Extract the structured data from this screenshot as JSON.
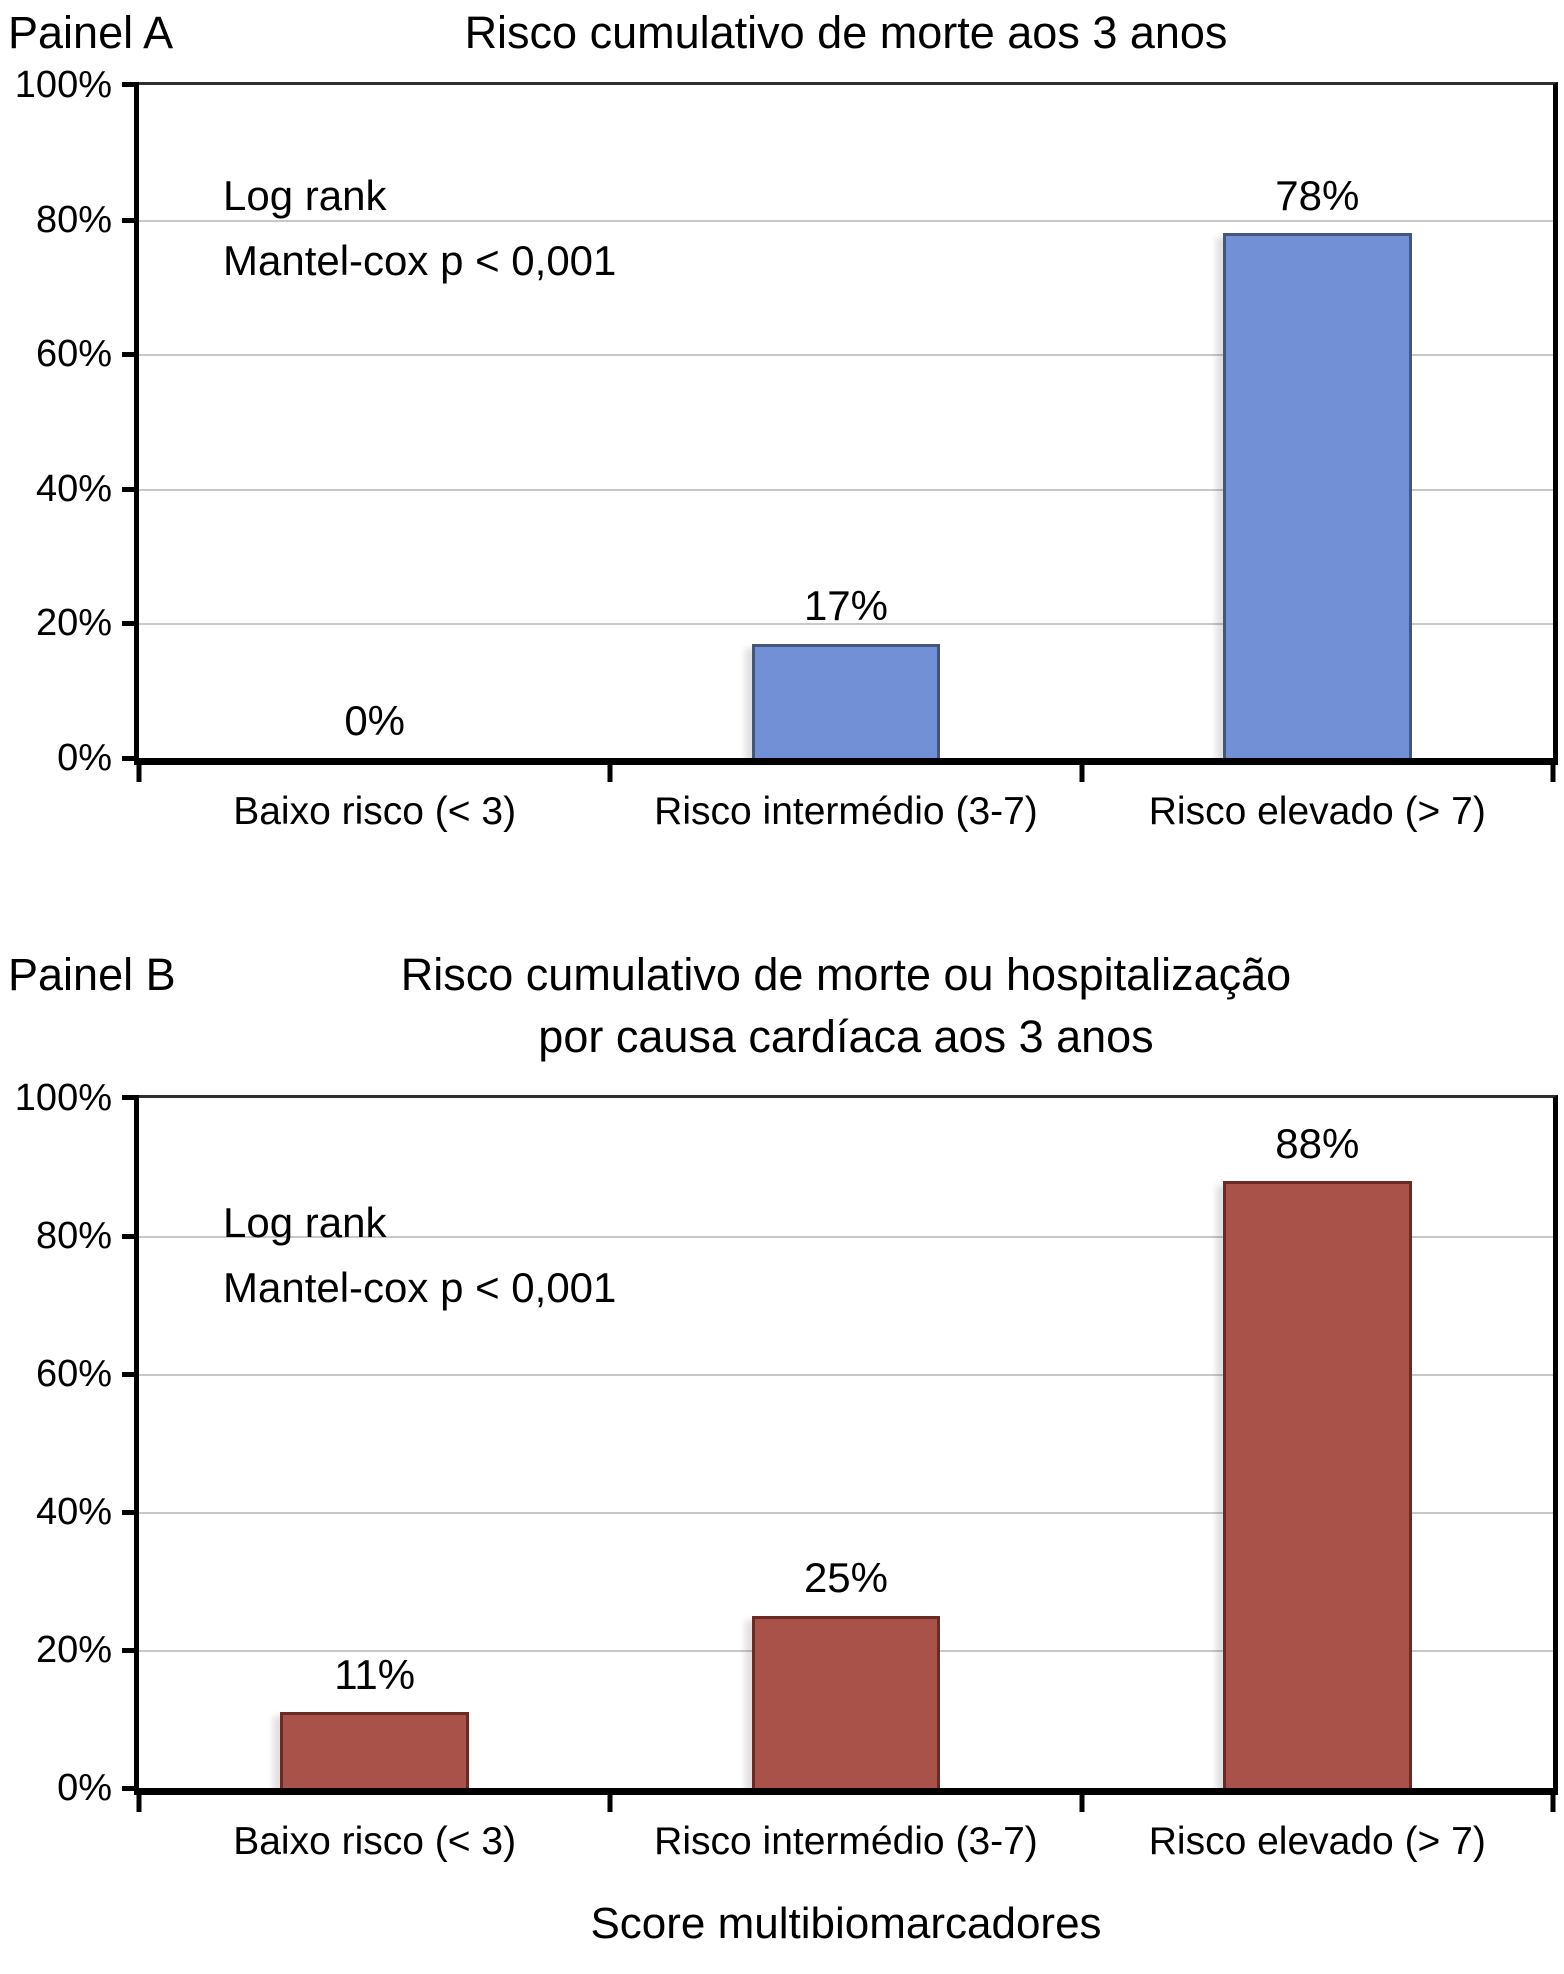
{
  "ui": {
    "panels": [
      {
        "panel_label": "Painel A",
        "title_lines": [
          "Risco cumulativo de morte aos 3 anos"
        ],
        "annotation_lines": [
          "Log rank",
          "Mantel-cox p < 0,001"
        ]
      },
      {
        "panel_label": "Painel B",
        "title_lines": [
          "Risco cumulativo de morte ou hospitalização",
          "por causa cardíaca aos 3 anos"
        ],
        "annotation_lines": [
          "Log rank",
          "Mantel-cox p < 0,001"
        ]
      }
    ],
    "x_axis_title": "Score multibiomarcadores",
    "colors": {
      "gridline": "#c8c8c8",
      "axis": "#000000"
    }
  },
  "chart_data": [
    {
      "type": "bar",
      "title": "Risco cumulativo de morte aos 3 anos",
      "categories": [
        "Baixo risco (< 3)",
        "Risco intermédio (3-7)",
        "Risco elevado (> 7)"
      ],
      "values": [
        0,
        17,
        78
      ],
      "value_labels": [
        "0%",
        "17%",
        "78%"
      ],
      "annotation": "Log rank Mantel-cox p < 0,001",
      "xlabel": "",
      "ylabel": "",
      "ylim": [
        0,
        100
      ],
      "y_ticks": [
        "100%",
        "80%",
        "60%",
        "40%",
        "20%",
        "0%"
      ],
      "grid": true,
      "legend": "none",
      "bar_fill": "#7290D5",
      "bar_border": "#44567A"
    },
    {
      "type": "bar",
      "title": "Risco cumulativo de morte ou hospitalização por causa cardíaca aos 3 anos",
      "categories": [
        "Baixo risco (< 3)",
        "Risco intermédio (3-7)",
        "Risco elevado (> 7)"
      ],
      "values": [
        11,
        25,
        88
      ],
      "value_labels": [
        "11%",
        "25%",
        "88%"
      ],
      "annotation": "Log rank Mantel-cox p < 0,001",
      "xlabel": "Score multibiomarcadores",
      "ylabel": "",
      "ylim": [
        0,
        100
      ],
      "y_ticks": [
        "100%",
        "80%",
        "60%",
        "40%",
        "20%",
        "0%"
      ],
      "grid": true,
      "legend": "none",
      "bar_fill": "#A8524A",
      "bar_border": "#6B2A24"
    }
  ]
}
